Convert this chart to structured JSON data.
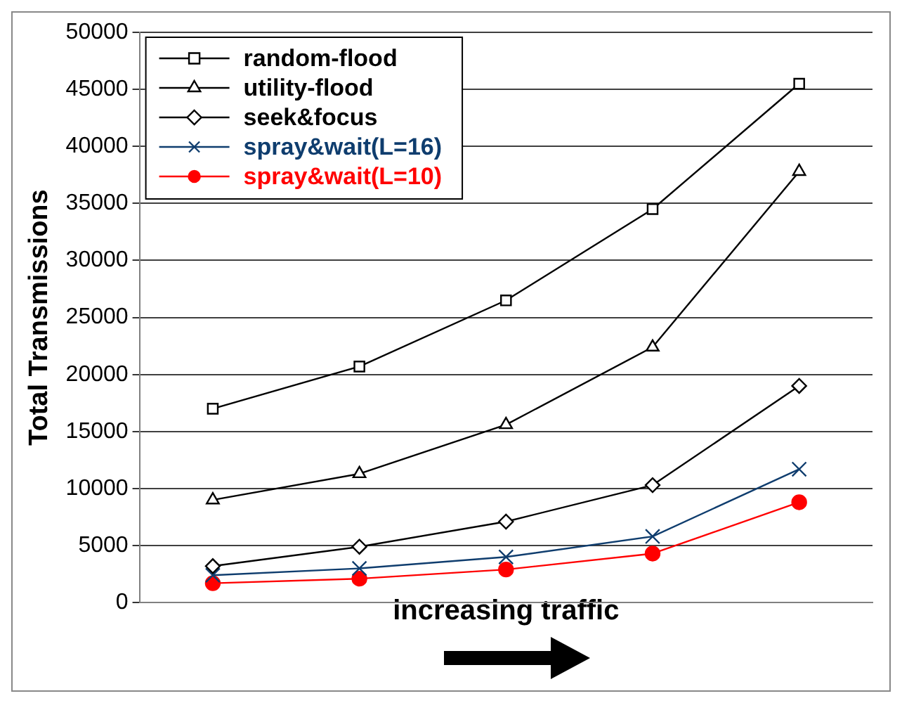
{
  "chart_data": {
    "type": "line",
    "xlabel": "increasing traffic",
    "ylabel": "Total Transmissions",
    "categories": [
      null,
      null,
      null,
      null,
      null
    ],
    "series": [
      {
        "name": "random-flood",
        "color": "#000000",
        "marker": "square",
        "values": [
          17000,
          20700,
          26500,
          34500,
          45500
        ]
      },
      {
        "name": "utility-flood",
        "color": "#000000",
        "marker": "triangle",
        "values": [
          9000,
          11300,
          15600,
          22400,
          37800
        ]
      },
      {
        "name": "seek&focus",
        "color": "#000000",
        "marker": "diamond",
        "values": [
          3200,
          4900,
          7100,
          10300,
          19000
        ]
      },
      {
        "name": "spray&wait(L=16)",
        "color": "#0f3d6e",
        "marker": "cross",
        "values": [
          2400,
          3000,
          4000,
          5800,
          11700
        ]
      },
      {
        "name": "spray&wait(L=10)",
        "color": "#ff0000",
        "marker": "circle",
        "values": [
          1700,
          2100,
          2900,
          4300,
          8800
        ]
      }
    ],
    "ylim": [
      0,
      50000
    ],
    "yticks": [
      0,
      5000,
      10000,
      15000,
      20000,
      25000,
      30000,
      35000,
      40000,
      45000,
      50000
    ],
    "grid": "y",
    "legend": "top left"
  }
}
